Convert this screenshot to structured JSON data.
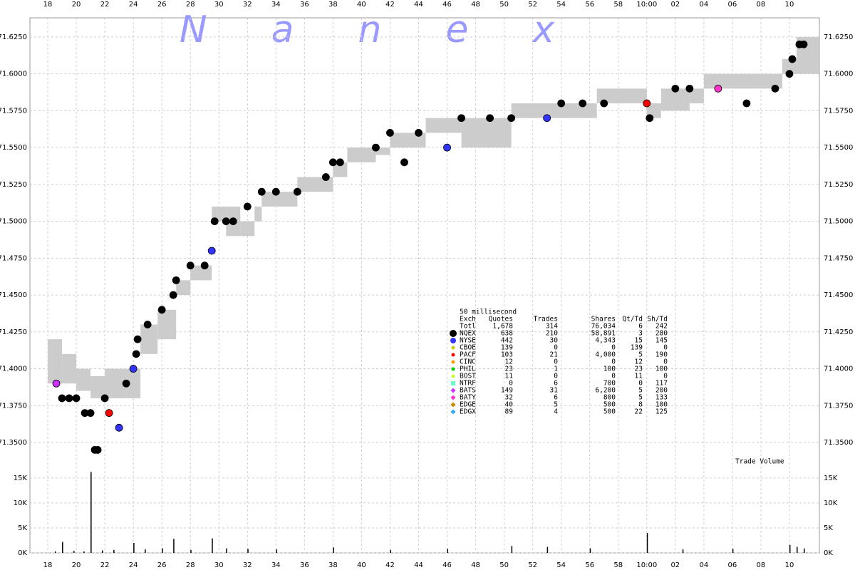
{
  "chart_data": {
    "type": "nanex",
    "title": "Nanex",
    "volume_label": "Trade Volume",
    "xlim": [
      16.75,
      72.1
    ],
    "xticks": [
      18,
      20,
      22,
      24,
      26,
      28,
      30,
      32,
      34,
      36,
      38,
      40,
      42,
      44,
      46,
      48,
      50,
      52,
      54,
      56,
      58,
      {
        "value": 60,
        "label": "10:00"
      },
      {
        "value": 62,
        "label": "02"
      },
      {
        "value": 64,
        "label": "04"
      },
      {
        "value": 66,
        "label": "06"
      },
      {
        "value": 68,
        "label": "08"
      },
      {
        "value": 70,
        "label": "10"
      }
    ],
    "ylim": [
      71.336,
      71.638
    ],
    "yticks": [
      {
        "value": 71.35,
        "label": "71.3500"
      },
      {
        "value": 71.375,
        "label": "71.3750"
      },
      {
        "value": 71.4,
        "label": "71.4000"
      },
      {
        "value": 71.425,
        "label": "71.4250"
      },
      {
        "value": 71.45,
        "label": "71.4500"
      },
      {
        "value": 71.475,
        "label": "71.4750"
      },
      {
        "value": 71.5,
        "label": "71.5000"
      },
      {
        "value": 71.525,
        "label": "71.5250"
      },
      {
        "value": 71.55,
        "label": "71.5500"
      },
      {
        "value": 71.575,
        "label": "71.5750"
      },
      {
        "value": 71.6,
        "label": "71.6000"
      },
      {
        "value": 71.625,
        "label": "71.6250"
      }
    ],
    "y2lim": [
      0,
      19400
    ],
    "y2ticks": [
      {
        "value": 0,
        "label": "0K"
      },
      {
        "value": 5000,
        "label": "5K"
      },
      {
        "value": 10000,
        "label": "10K"
      },
      {
        "value": 15000,
        "label": "15K"
      }
    ],
    "grid": true,
    "nbbo": {
      "color": "#cccccc",
      "x": [
        18,
        19,
        20,
        21,
        22,
        23.5,
        24.5,
        25.7,
        27,
        28,
        29.5,
        30.5,
        31.5,
        32.5,
        33,
        34,
        35.5,
        38,
        39,
        41,
        42,
        44.5,
        47,
        50.5,
        56.5,
        60,
        61,
        63,
        64,
        69.5,
        70.5
      ],
      "bid": [
        71.39,
        71.39,
        71.385,
        71.38,
        71.38,
        71.38,
        71.41,
        71.42,
        71.45,
        71.46,
        71.5,
        71.49,
        71.49,
        71.5,
        71.51,
        71.51,
        71.52,
        71.53,
        71.54,
        71.545,
        71.55,
        71.56,
        71.55,
        71.57,
        71.58,
        71.57,
        71.575,
        71.58,
        71.59,
        71.6,
        71.6
      ],
      "ask": [
        71.42,
        71.41,
        71.4,
        71.395,
        71.4,
        71.4,
        71.43,
        71.44,
        71.46,
        71.47,
        71.51,
        71.51,
        71.5,
        71.51,
        71.52,
        71.52,
        71.53,
        71.54,
        71.55,
        71.55,
        71.56,
        71.57,
        71.57,
        71.58,
        71.59,
        71.58,
        71.59,
        71.59,
        71.6,
        71.61,
        71.625
      ]
    },
    "trades": {
      "x": [
        18.6,
        19,
        19.5,
        20,
        20.6,
        21,
        21.3,
        21.5,
        22,
        22.3,
        23,
        23.5,
        24,
        24.2,
        24.3,
        25,
        26,
        26.8,
        27,
        28,
        29,
        29.5,
        29.7,
        30.5,
        31,
        32,
        33,
        34,
        35.5,
        37.5,
        38,
        38.5,
        41,
        42,
        43,
        44,
        46,
        47,
        49,
        50.5,
        53,
        54,
        55.5,
        57,
        60,
        60.2,
        62,
        63,
        65,
        67,
        69,
        70,
        70.2,
        70.7,
        71
      ],
      "y": [
        71.39,
        71.38,
        71.38,
        71.38,
        71.37,
        71.37,
        71.345,
        71.345,
        71.38,
        71.37,
        71.36,
        71.39,
        71.4,
        71.41,
        71.42,
        71.43,
        71.44,
        71.45,
        71.46,
        71.47,
        71.47,
        71.48,
        71.5,
        71.5,
        71.5,
        71.51,
        71.52,
        71.52,
        71.52,
        71.53,
        71.54,
        71.54,
        71.55,
        71.56,
        71.54,
        71.56,
        71.55,
        71.57,
        71.57,
        71.57,
        71.57,
        71.58,
        71.58,
        71.58,
        71.58,
        71.57,
        71.59,
        71.59,
        71.59,
        71.58,
        71.59,
        71.6,
        71.61,
        71.62,
        71.62
      ],
      "colors": [
        "#cc33ff",
        "#000000",
        "#000000",
        "#000000",
        "#000000",
        "#000000",
        "#000000",
        "#000000",
        "#000000",
        "#ff0000",
        "#3333ff",
        "#000000",
        "#3333ff",
        "#000000",
        "#000000",
        "#000000",
        "#000000",
        "#000000",
        "#000000",
        "#000000",
        "#000000",
        "#3333ff",
        "#000000",
        "#000000",
        "#000000",
        "#000000",
        "#000000",
        "#000000",
        "#000000",
        "#000000",
        "#000000",
        "#000000",
        "#000000",
        "#000000",
        "#000000",
        "#000000",
        "#3333ff",
        "#000000",
        "#000000",
        "#000000",
        "#3333ff",
        "#000000",
        "#000000",
        "#000000",
        "#ff0000",
        "#000000",
        "#000000",
        "#000000",
        "#ff33cc",
        "#000000",
        "#000000",
        "#000000",
        "#000000",
        "#000000",
        "#000000"
      ]
    },
    "volume": {
      "x": [
        18.5,
        19,
        19.8,
        20.5,
        21,
        21.8,
        22.6,
        24,
        24.8,
        26,
        26.8,
        28,
        29.5,
        30.5,
        32,
        34,
        38,
        42,
        46,
        50.5,
        53,
        56,
        60,
        62.5,
        66,
        70,
        70.5,
        71
      ],
      "values": [
        300,
        2200,
        400,
        300,
        16200,
        500,
        600,
        2000,
        700,
        900,
        2800,
        600,
        2900,
        900,
        800,
        700,
        1100,
        600,
        800,
        1400,
        1200,
        900,
        4000,
        700,
        800,
        1600,
        1200,
        900
      ],
      "color": "#000000"
    },
    "legend_table": {
      "caption": "50 millisecond",
      "columns": [
        "Exch",
        "Quotes",
        "Trades",
        "Shares",
        "Qt/Td",
        "Sh/Td"
      ],
      "rows": [
        [
          "Totl",
          "1,678",
          "314",
          "76,034",
          "6",
          "242"
        ],
        [
          "NQEX",
          "638",
          "210",
          "58,891",
          "3",
          "280"
        ],
        [
          "NYSE",
          "442",
          "30",
          "4,343",
          "15",
          "145"
        ],
        [
          "CBOE",
          "139",
          "0",
          "0",
          "139",
          "0"
        ],
        [
          "PACF",
          "103",
          "21",
          "4,000",
          "5",
          "190"
        ],
        [
          "CINC",
          "12",
          "0",
          "0",
          "12",
          "0"
        ],
        [
          "PHIL",
          "23",
          "1",
          "100",
          "23",
          "100"
        ],
        [
          "BOST",
          "11",
          "0",
          "0",
          "11",
          "0"
        ],
        [
          "NTRF",
          "0",
          "6",
          "700",
          "0",
          "117"
        ],
        [
          "BATS",
          "149",
          "31",
          "6,200",
          "5",
          "200"
        ],
        [
          "BATY",
          "32",
          "6",
          "800",
          "5",
          "133"
        ],
        [
          "EDGE",
          "40",
          "5",
          "500",
          "8",
          "100"
        ],
        [
          "EDGX",
          "89",
          "4",
          "500",
          "22",
          "125"
        ]
      ],
      "row_colors": [
        null,
        "#000000",
        "#3333ff",
        "#cccc00",
        "#ff0000",
        "#ff9900",
        "#00cc00",
        "#ccff33",
        "#66ffcc",
        "#cc33ff",
        "#ff33cc",
        "#cc8800",
        "#33aaff"
      ],
      "row_markers": [
        null,
        "circle",
        "circle",
        "circle",
        "circle",
        "circle",
        "circle",
        "circle",
        "square",
        "diamond",
        "diamond",
        "diamond",
        "diamond"
      ]
    }
  }
}
